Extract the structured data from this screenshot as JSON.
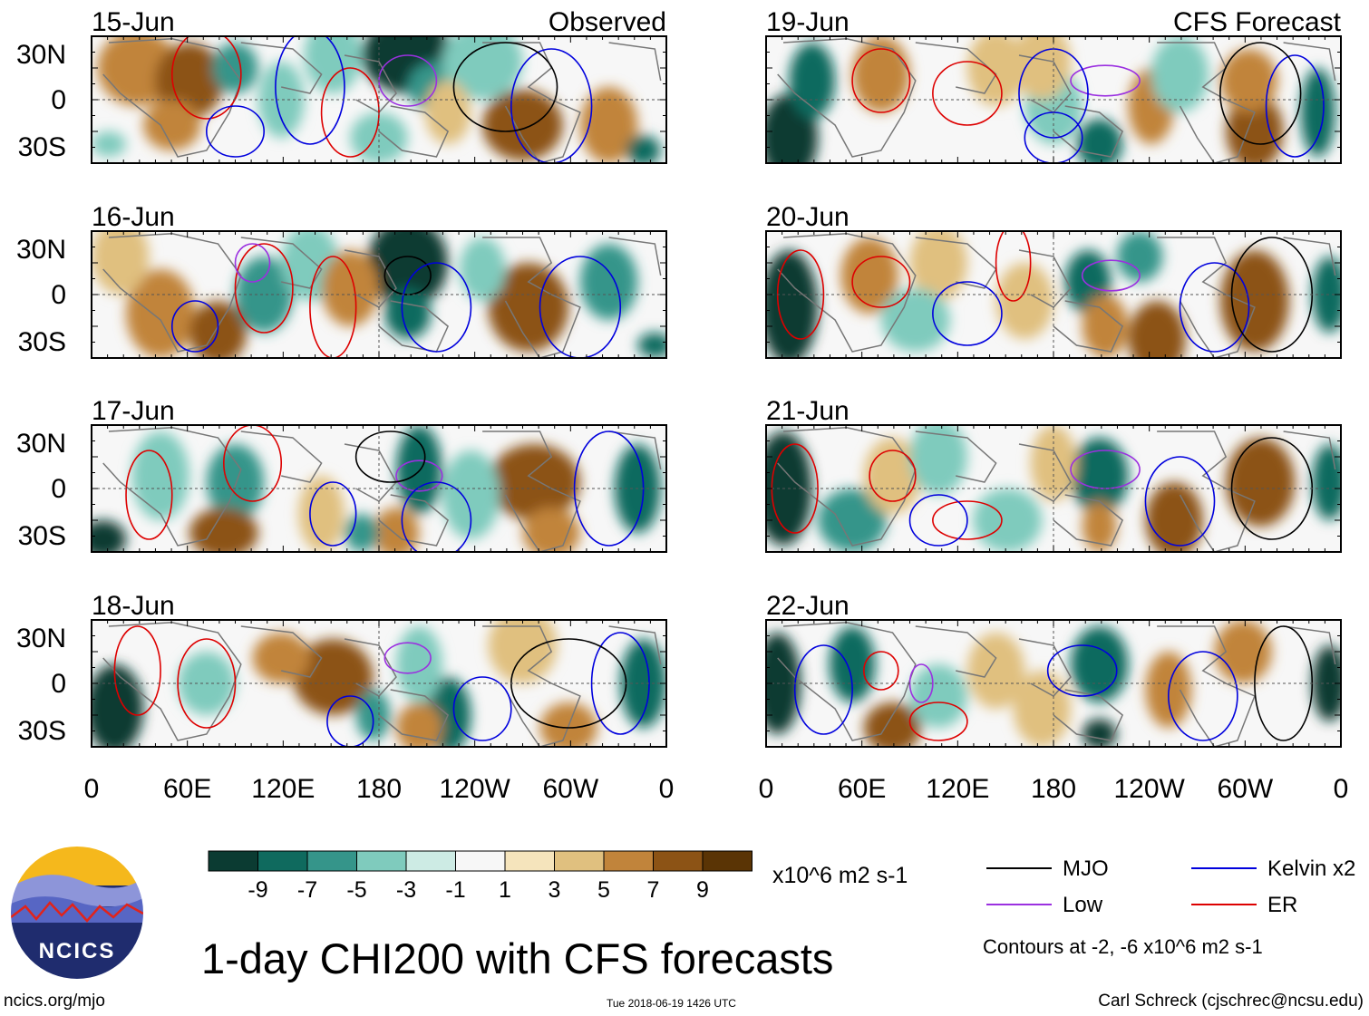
{
  "title": "1-day CHI200 with CFS forecasts",
  "footer": {
    "website": "ncics.org/mjo",
    "timestamp": "Tue 2018-06-19 1426 UTC",
    "author": "Carl Schreck (cjschrec@ncsu.edu)"
  },
  "logo": {
    "text": "NCICS"
  },
  "columns": {
    "observed_label": "Observed",
    "forecast_label": "CFS Forecast"
  },
  "axes": {
    "lat_labels": [
      "30N",
      "0",
      "30S"
    ],
    "lon_labels": [
      "0",
      "60E",
      "120E",
      "180",
      "120W",
      "60W",
      "0"
    ]
  },
  "panels": {
    "observed": [
      {
        "date": "15-Jun",
        "tag": "Observed"
      },
      {
        "date": "16-Jun",
        "tag": ""
      },
      {
        "date": "17-Jun",
        "tag": ""
      },
      {
        "date": "18-Jun",
        "tag": ""
      }
    ],
    "forecast": [
      {
        "date": "19-Jun",
        "tag": "CFS Forecast"
      },
      {
        "date": "20-Jun",
        "tag": ""
      },
      {
        "date": "21-Jun",
        "tag": ""
      },
      {
        "date": "22-Jun",
        "tag": ""
      }
    ]
  },
  "colorbar": {
    "units": "x10^6 m2 s-1",
    "tick_labels": [
      "-9",
      "-7",
      "-5",
      "-3",
      "-1",
      "1",
      "3",
      "5",
      "7",
      "9"
    ],
    "colors": [
      "#0b3b32",
      "#0f6a5e",
      "#35958a",
      "#7fcbbd",
      "#cdebe4",
      "#f7f7f7",
      "#f5e4bc",
      "#e0c07f",
      "#c1843b",
      "#8c5315",
      "#5a3405"
    ]
  },
  "legend": {
    "items": [
      {
        "label": "MJO",
        "color": "#000000"
      },
      {
        "label": "Kelvin x2",
        "color": "#0000dd"
      },
      {
        "label": "Low",
        "color": "#9b30e0"
      },
      {
        "label": "ER",
        "color": "#dd0000"
      }
    ],
    "note": "Contours at -2, -6 x10^6 m2 s-1"
  }
}
